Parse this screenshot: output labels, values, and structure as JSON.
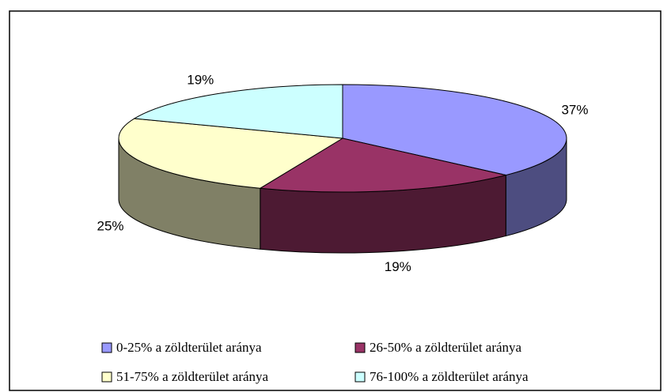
{
  "chart_data": {
    "type": "pie",
    "categories": [
      "0-25% a zöldterület aránya",
      "26-50% a zöldterület aránya",
      "51-75% a zöldterület aránya",
      "76-100% a zöldterület aránya"
    ],
    "values": [
      37,
      19,
      25,
      19
    ],
    "value_labels": [
      "37%",
      "19%",
      "25%",
      "19%"
    ],
    "colors": [
      "#9999ff",
      "#993366",
      "#ffffcc",
      "#ccffff"
    ],
    "legend": "bottom"
  }
}
